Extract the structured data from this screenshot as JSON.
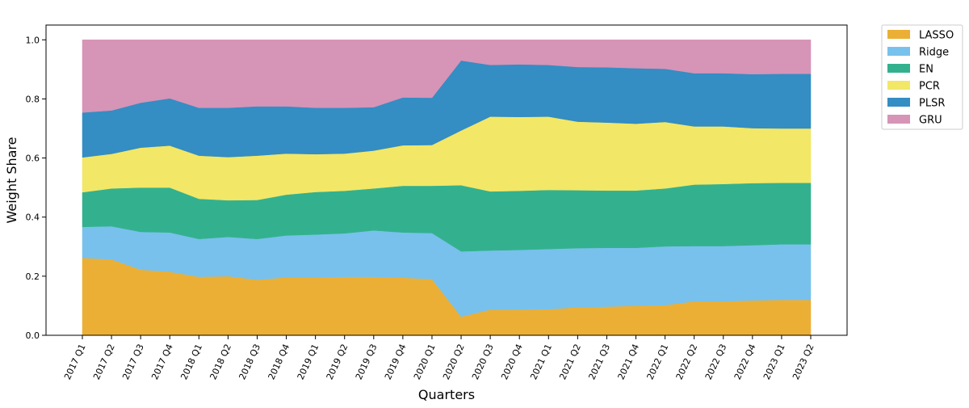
{
  "chart_data": {
    "type": "area",
    "stacked": true,
    "xlabel": "Quarters",
    "ylabel": "Weight Share",
    "ylim": [
      0,
      1.05
    ],
    "yticks": [
      "0.0",
      "0.2",
      "0.4",
      "0.6",
      "0.8",
      "1.0"
    ],
    "legend_position": "outside-top-right",
    "x": [
      "2017 Q1",
      "2017 Q2",
      "2017 Q3",
      "2017 Q4",
      "2018 Q1",
      "2018 Q2",
      "2018 Q3",
      "2018 Q4",
      "2019 Q1",
      "2019 Q2",
      "2019 Q3",
      "2019 Q4",
      "2020 Q1",
      "2020 Q2",
      "2020 Q3",
      "2020 Q4",
      "2021 Q1",
      "2021 Q2",
      "2021 Q3",
      "2021 Q4",
      "2022 Q1",
      "2022 Q2",
      "2022 Q3",
      "2022 Q4",
      "2023 Q1",
      "2023 Q2"
    ],
    "series": [
      {
        "name": "LASSO",
        "color": "#EBAF36",
        "values": [
          0.262,
          0.257,
          0.222,
          0.215,
          0.198,
          0.2,
          0.188,
          0.196,
          0.196,
          0.198,
          0.198,
          0.195,
          0.19,
          0.063,
          0.087,
          0.087,
          0.088,
          0.095,
          0.097,
          0.1,
          0.102,
          0.115,
          0.115,
          0.118,
          0.12,
          0.12
        ]
      },
      {
        "name": "Ridge",
        "color": "#78C1EC",
        "values": [
          0.105,
          0.112,
          0.128,
          0.133,
          0.128,
          0.133,
          0.138,
          0.142,
          0.145,
          0.147,
          0.157,
          0.153,
          0.156,
          0.221,
          0.2,
          0.202,
          0.204,
          0.2,
          0.199,
          0.196,
          0.199,
          0.187,
          0.187,
          0.187,
          0.188,
          0.188
        ]
      },
      {
        "name": "EN",
        "color": "#33B18E",
        "values": [
          0.117,
          0.128,
          0.15,
          0.152,
          0.136,
          0.124,
          0.132,
          0.138,
          0.144,
          0.144,
          0.142,
          0.158,
          0.16,
          0.224,
          0.2,
          0.2,
          0.2,
          0.196,
          0.194,
          0.194,
          0.196,
          0.208,
          0.21,
          0.21,
          0.208,
          0.208
        ]
      },
      {
        "name": "PCR",
        "color": "#F2E767",
        "values": [
          0.118,
          0.117,
          0.135,
          0.142,
          0.146,
          0.146,
          0.15,
          0.139,
          0.128,
          0.126,
          0.128,
          0.137,
          0.138,
          0.185,
          0.253,
          0.25,
          0.248,
          0.232,
          0.23,
          0.226,
          0.225,
          0.197,
          0.195,
          0.186,
          0.184,
          0.184
        ]
      },
      {
        "name": "PLSR",
        "color": "#348DC3",
        "values": [
          0.152,
          0.147,
          0.152,
          0.16,
          0.162,
          0.167,
          0.167,
          0.16,
          0.157,
          0.155,
          0.147,
          0.162,
          0.16,
          0.237,
          0.175,
          0.178,
          0.175,
          0.185,
          0.187,
          0.188,
          0.18,
          0.18,
          0.18,
          0.183,
          0.185,
          0.185
        ]
      },
      {
        "name": "GRU",
        "color": "#D694B7",
        "values": [
          0.246,
          0.239,
          0.213,
          0.198,
          0.23,
          0.23,
          0.225,
          0.225,
          0.23,
          0.23,
          0.228,
          0.195,
          0.196,
          0.07,
          0.085,
          0.083,
          0.085,
          0.092,
          0.093,
          0.096,
          0.098,
          0.113,
          0.113,
          0.116,
          0.115,
          0.115
        ]
      }
    ]
  }
}
